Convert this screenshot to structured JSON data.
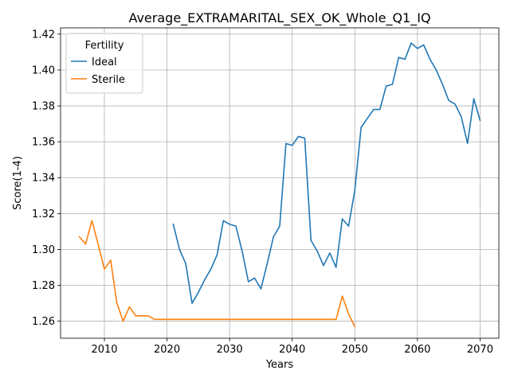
{
  "chart_data": {
    "type": "line",
    "title": "Average_EXTRAMARITAL_SEX_OK_Whole_Q1_IQ",
    "xlabel": "Years",
    "ylabel": "Score(1-4)",
    "xlim": [
      2003,
      2073
    ],
    "ylim": [
      1.2505,
      1.4235
    ],
    "xticks": [
      2010,
      2020,
      2030,
      2040,
      2050,
      2060,
      2070
    ],
    "yticks": [
      1.26,
      1.28,
      1.3,
      1.32,
      1.34,
      1.36,
      1.38,
      1.4,
      1.42
    ],
    "ytick_labels": [
      "1.26",
      "1.28",
      "1.30",
      "1.32",
      "1.34",
      "1.36",
      "1.38",
      "1.40",
      "1.42"
    ],
    "grid": true,
    "legend": {
      "title": "Fertility",
      "position": "top-left"
    },
    "series": [
      {
        "name": "Ideal",
        "color": "#1f77b4",
        "x": [
          2021,
          2022,
          2023,
          2024,
          2025,
          2026,
          2027,
          2028,
          2029,
          2030,
          2031,
          2032,
          2033,
          2034,
          2035,
          2036,
          2037,
          2038,
          2039,
          2040,
          2041,
          2042,
          2043,
          2044,
          2045,
          2046,
          2047,
          2048,
          2049,
          2050,
          2051,
          2052,
          2053,
          2054,
          2055,
          2056,
          2057,
          2058,
          2059,
          2060,
          2061,
          2062,
          2063,
          2064,
          2065,
          2066,
          2067,
          2068,
          2069,
          2070
        ],
        "y": [
          1.314,
          1.3,
          1.292,
          1.27,
          1.276,
          1.283,
          1.289,
          1.297,
          1.316,
          1.314,
          1.313,
          1.299,
          1.282,
          1.284,
          1.278,
          1.292,
          1.307,
          1.313,
          1.359,
          1.358,
          1.363,
          1.362,
          1.305,
          1.299,
          1.291,
          1.298,
          1.29,
          1.317,
          1.313,
          1.333,
          1.368,
          1.373,
          1.378,
          1.378,
          1.391,
          1.392,
          1.407,
          1.406,
          1.415,
          1.412,
          1.414,
          1.406,
          1.4,
          1.392,
          1.383,
          1.381,
          1.374,
          1.359,
          1.384,
          1.372
        ]
      },
      {
        "name": "Sterile",
        "color": "#ff7f0e",
        "x": [
          2006,
          2007,
          2008,
          2009,
          2010,
          2011,
          2012,
          2013,
          2014,
          2015,
          2016,
          2017,
          2018,
          2019,
          2020,
          2021,
          2022,
          2023,
          2024,
          2025,
          2026,
          2027,
          2028,
          2029,
          2030,
          2031,
          2032,
          2033,
          2034,
          2035,
          2036,
          2037,
          2038,
          2039,
          2040,
          2041,
          2042,
          2043,
          2044,
          2045,
          2046,
          2047,
          2048,
          2049,
          2050
        ],
        "y": [
          1.307,
          1.303,
          1.316,
          1.303,
          1.289,
          1.294,
          1.27,
          1.26,
          1.268,
          1.263,
          1.263,
          1.263,
          1.261,
          1.261,
          1.261,
          1.261,
          1.261,
          1.261,
          1.261,
          1.261,
          1.261,
          1.261,
          1.261,
          1.261,
          1.261,
          1.261,
          1.261,
          1.261,
          1.261,
          1.261,
          1.261,
          1.261,
          1.261,
          1.261,
          1.261,
          1.261,
          1.261,
          1.261,
          1.261,
          1.261,
          1.261,
          1.261,
          1.274,
          1.264,
          1.257
        ]
      }
    ]
  }
}
